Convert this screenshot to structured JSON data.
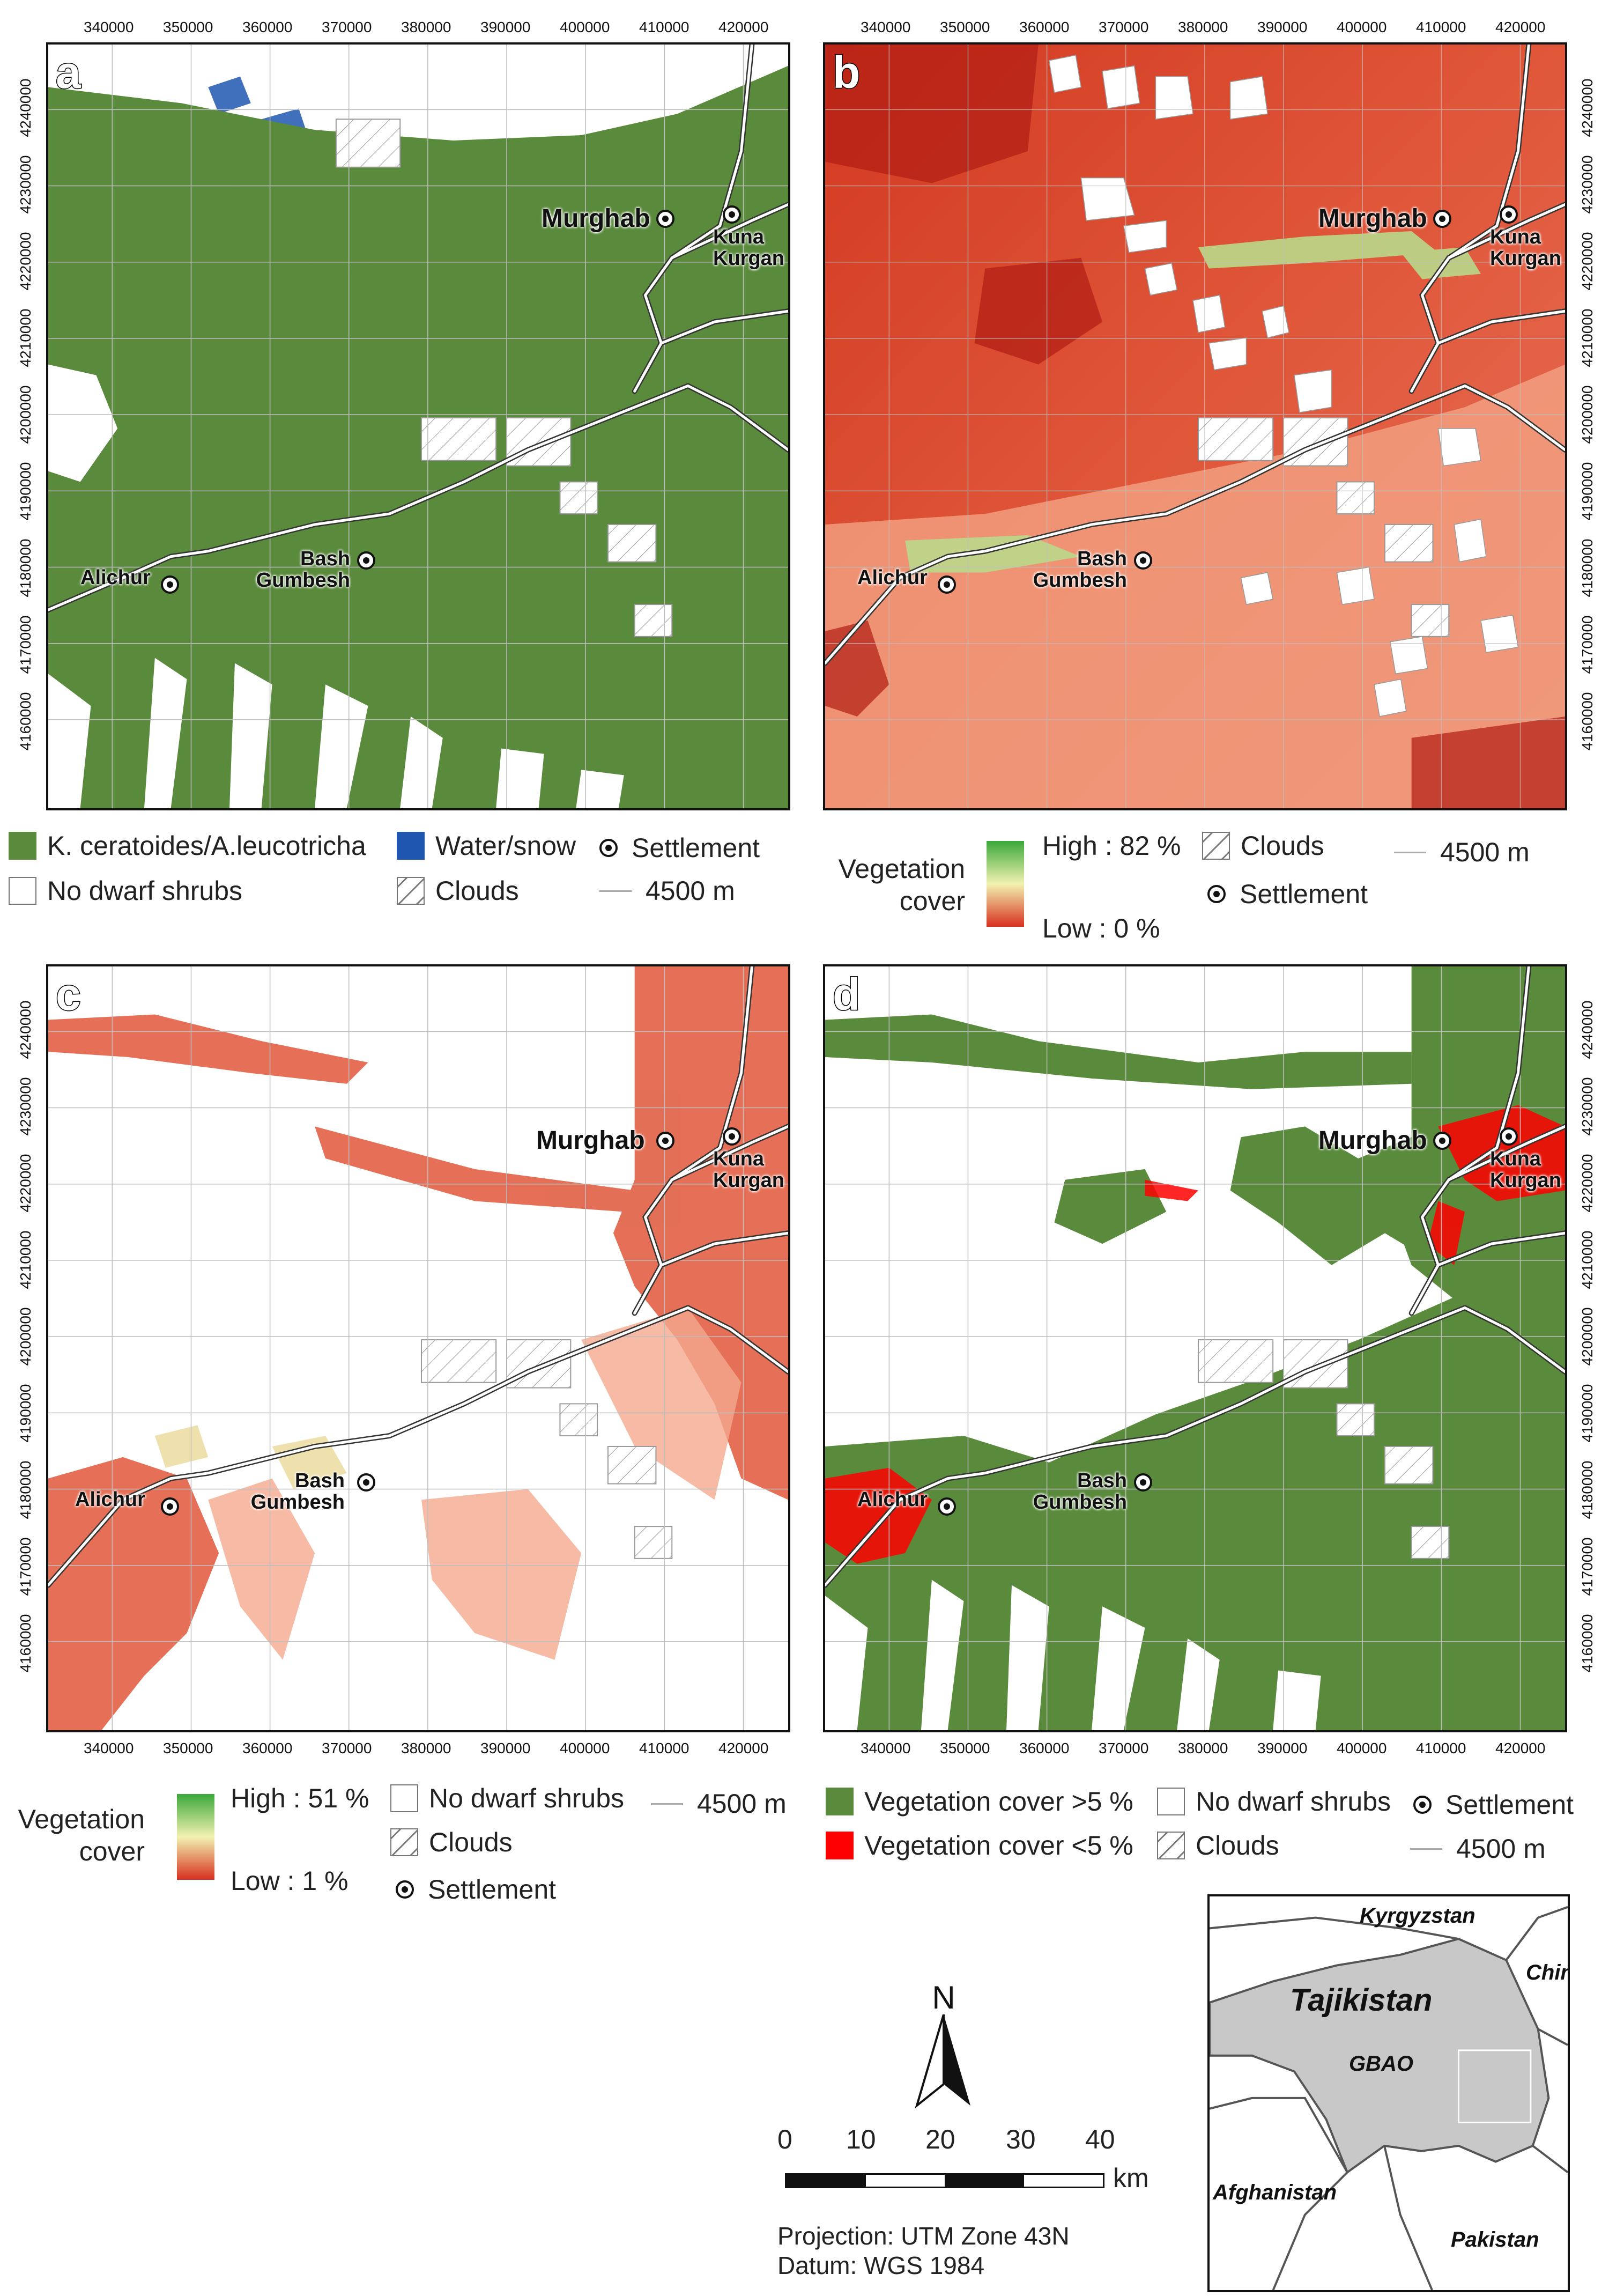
{
  "figure": {
    "x_ticks": [
      "340000",
      "350000",
      "360000",
      "370000",
      "380000",
      "390000",
      "400000",
      "410000",
      "420000"
    ],
    "y_ticks": [
      "4240000",
      "4230000",
      "4220000",
      "4210000",
      "4200000",
      "4190000",
      "4180000",
      "4170000",
      "4160000"
    ],
    "places": {
      "murghab": "Murghab",
      "kuna_kurgan_1": "Kuna",
      "kuna_kurgan_2": "Kurgan",
      "alichur": "Alichur",
      "bash_gumbesh_1": "Bash",
      "bash_gumbesh_2": "Gumbesh"
    },
    "colors": {
      "shrub_green": "#5a8a3c",
      "water_blue": "#1f57b0",
      "cover_high_b": "#3aa83a",
      "cover_low_red": "#d7301f",
      "cover_red_mid": "#e0573a",
      "below5_red": "#ff0000",
      "road": "#ffffff",
      "contour": "#9a9a9a"
    }
  },
  "panels": {
    "a": {
      "letter": "a",
      "legend": {
        "shrubs": "K. ceratoides/A.leucotricha",
        "water": "Water/snow",
        "settlement": "Settlement",
        "no_shrubs": "No dwarf shrubs",
        "clouds": "Clouds",
        "contour": "4500 m"
      }
    },
    "b": {
      "letter": "b",
      "legend": {
        "title_1": "Vegetation",
        "title_2": "cover",
        "high": "High : 82 %",
        "low": "Low : 0 %",
        "clouds": "Clouds",
        "settlement": "Settlement",
        "contour": "4500 m"
      }
    },
    "c": {
      "letter": "c",
      "legend": {
        "title_1": "Vegetation",
        "title_2": "cover",
        "high": "High : 51 %",
        "low": "Low : 1 %",
        "no_shrubs": "No dwarf shrubs",
        "clouds": "Clouds",
        "settlement": "Settlement",
        "contour": "4500 m"
      }
    },
    "d": {
      "letter": "d",
      "legend": {
        "above5": "Vegetation cover >5 %",
        "below5": "Vegetation cover <5 %",
        "no_shrubs": "No dwarf shrubs",
        "clouds": "Clouds",
        "settlement": "Settlement",
        "contour": "4500 m"
      }
    }
  },
  "north_arrow": {
    "label": "N"
  },
  "scale_bar": {
    "ticks": [
      "0",
      "10",
      "20",
      "30",
      "40"
    ],
    "unit": "km"
  },
  "projection": {
    "line1": "Projection: UTM Zone 43N",
    "line2": "Datum: WGS 1984"
  },
  "inset": {
    "kyrgyzstan": "Kyrgyzstan",
    "china": "China",
    "tajikistan": "Tajikistan",
    "gbao": "GBAO",
    "afghanistan": "Afghanistan",
    "pakistan": "Pakistan"
  }
}
